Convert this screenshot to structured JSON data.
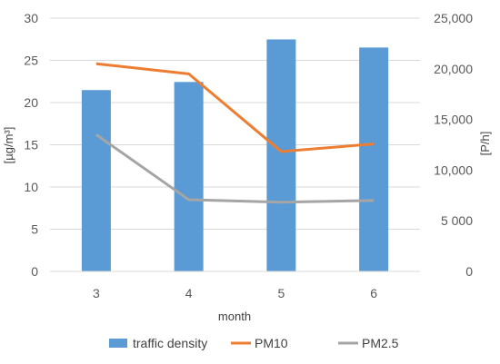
{
  "chart_data": {
    "type": "bar+line",
    "title": "",
    "categories": [
      "3",
      "4",
      "5",
      "6"
    ],
    "xlabel": "month",
    "ylabel_left": "[µg/m³]",
    "ylabel_right": "[P/h]",
    "ylim_left": [
      0,
      30
    ],
    "ylim_right": [
      0,
      25000
    ],
    "yticks_left": [
      "0",
      "5",
      "10",
      "15",
      "20",
      "25",
      "30"
    ],
    "yticks_right": [
      "0",
      "5 000",
      "10,000",
      "15,000",
      "20,000",
      "25,000"
    ],
    "grid": true,
    "legend_position": "bottom",
    "series": [
      {
        "name": "traffic density",
        "kind": "bar",
        "axis": "right",
        "color": "#5B9BD5",
        "values": [
          17900,
          18700,
          22900,
          22100
        ]
      },
      {
        "name": "PM10",
        "kind": "line",
        "axis": "left",
        "color": "#ED7D31",
        "values": [
          24.6,
          23.4,
          14.2,
          15.1
        ]
      },
      {
        "name": "PM2.5",
        "kind": "line",
        "axis": "left",
        "color": "#A5A5A5",
        "values": [
          16.2,
          8.5,
          8.2,
          8.4
        ]
      }
    ]
  }
}
